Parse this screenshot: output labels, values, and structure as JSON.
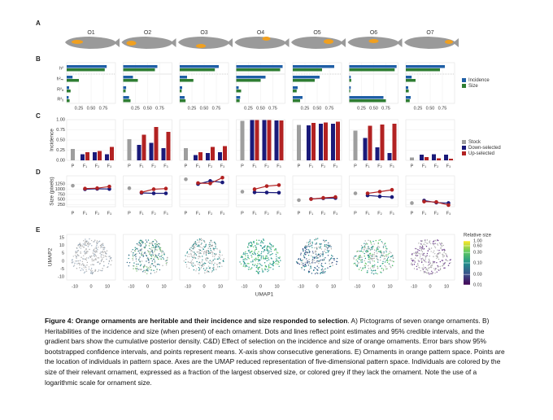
{
  "panel_labels": [
    "A",
    "B",
    "C",
    "D",
    "E"
  ],
  "ornaments": [
    "O1",
    "O2",
    "O3",
    "O4",
    "O5",
    "O6",
    "O7"
  ],
  "chart_data": [
    {
      "type": "hbar",
      "row_labels": [
        "h²",
        "h²ₘ",
        "R²ₐ",
        "R²ᵧ"
      ],
      "xlim": [
        0,
        1
      ],
      "xticks": [
        0.25,
        {
          "value": 0.5,
          "label": "0.50"
        },
        0.75
      ],
      "series": [
        {
          "name": "Incidence",
          "color": "#1f5fa6",
          "values": [
            [
              0.82,
              0.12,
              0.05,
              0.04
            ],
            [
              0.7,
              0.2,
              0.06,
              0.12
            ],
            [
              0.8,
              0.15,
              0.05,
              0.1
            ],
            [
              0.95,
              0.6,
              0.05,
              0.08
            ],
            [
              0.85,
              0.55,
              0.1,
              0.2
            ],
            [
              0.97,
              0.03,
              0.03,
              0.7
            ],
            [
              0.8,
              0.12,
              0.05,
              0.1
            ]
          ]
        },
        {
          "name": "Size",
          "color": "#2e7d32",
          "values": [
            [
              0.78,
              0.25,
              0.08,
              0.06
            ],
            [
              0.65,
              0.3,
              0.05,
              0.15
            ],
            [
              0.72,
              0.28,
              0.04,
              0.12
            ],
            [
              0.9,
              0.5,
              0.1,
              0.07
            ],
            [
              0.6,
              0.45,
              0.08,
              0.15
            ],
            [
              0.93,
              0.04,
              0.02,
              0.75
            ],
            [
              0.7,
              0.2,
              0.06,
              0.08
            ]
          ]
        }
      ]
    },
    {
      "type": "bar",
      "ylabel": "Incidence",
      "categories": [
        "P",
        "F₁",
        "F₂",
        "F₃"
      ],
      "ylim": [
        0,
        1
      ],
      "yticks": [
        {
          "value": 0,
          "label": "0.00"
        },
        {
          "value": 0.25,
          "label": "0.25"
        },
        {
          "value": 0.5,
          "label": "0.50"
        },
        {
          "value": 0.75,
          "label": "0.75"
        },
        {
          "value": 1,
          "label": "1.00"
        }
      ],
      "series": [
        {
          "name": "Stock",
          "color": "#9e9e9e",
          "values": [
            [
              0.28,
              null,
              null,
              null
            ],
            [
              0.52,
              null,
              null,
              null
            ],
            [
              0.3,
              null,
              null,
              null
            ],
            [
              0.97,
              null,
              null,
              null
            ],
            [
              0.87,
              null,
              null,
              null
            ],
            [
              0.73,
              null,
              null,
              null
            ],
            [
              0.07,
              null,
              null,
              null
            ]
          ]
        },
        {
          "name": "Down-selected",
          "color": "#1a1a7a",
          "values": [
            [
              null,
              0.15,
              0.2,
              0.15
            ],
            [
              null,
              0.38,
              0.43,
              0.3
            ],
            [
              null,
              0.13,
              0.18,
              0.2
            ],
            [
              null,
              0.99,
              0.99,
              0.98
            ],
            [
              null,
              0.86,
              0.9,
              0.9
            ],
            [
              null,
              0.55,
              0.32,
              0.18
            ],
            [
              null,
              0.14,
              0.15,
              0.14
            ]
          ]
        },
        {
          "name": "Up-selected",
          "color": "#b22222",
          "values": [
            [
              null,
              0.2,
              0.23,
              0.33
            ],
            [
              null,
              0.63,
              0.82,
              0.7
            ],
            [
              null,
              0.2,
              0.33,
              0.35
            ],
            [
              null,
              0.99,
              0.99,
              0.98
            ],
            [
              null,
              0.92,
              0.93,
              0.95
            ],
            [
              null,
              0.85,
              0.88,
              0.9
            ],
            [
              null,
              0.08,
              0.05,
              0.04
            ]
          ]
        }
      ]
    },
    {
      "type": "line",
      "ylabel": "Size (pixels)",
      "categories": [
        "P",
        "F₁",
        "F₂",
        "F₃"
      ],
      "ylim": [
        150,
        1650
      ],
      "yticks": [
        250,
        500,
        750,
        1000,
        1250
      ],
      "series": [
        {
          "color": "#9e9e9e",
          "values": [
            [
              1170,
              null,
              null,
              null
            ],
            [
              1050,
              null,
              null,
              null
            ],
            [
              1480,
              null,
              null,
              null
            ],
            [
              880,
              null,
              null,
              null
            ],
            [
              470,
              null,
              null,
              null
            ],
            [
              800,
              null,
              null,
              null
            ],
            [
              330,
              null,
              null,
              null
            ]
          ]
        },
        {
          "color": "#1a1a7a",
          "values": [
            [
              null,
              1000,
              1020,
              1010
            ],
            [
              null,
              820,
              800,
              800
            ],
            [
              null,
              1250,
              1400,
              1330
            ],
            [
              null,
              850,
              840,
              830
            ],
            [
              null,
              530,
              560,
              570
            ],
            [
              null,
              700,
              650,
              620
            ],
            [
              null,
              450,
              350,
              330
            ]
          ]
        },
        {
          "color": "#b22222",
          "values": [
            [
              null,
              1030,
              1050,
              1130
            ],
            [
              null,
              850,
              1000,
              1030
            ],
            [
              null,
              1300,
              1280,
              1560
            ],
            [
              null,
              1000,
              1150,
              1200
            ],
            [
              null,
              520,
              580,
              620
            ],
            [
              null,
              800,
              880,
              970
            ],
            [
              null,
              400,
              380,
              230
            ]
          ]
        }
      ]
    },
    {
      "type": "scatter",
      "xlabel": "UMAP1",
      "ylabel": "UMAP2",
      "xlim": [
        -15,
        15
      ],
      "ylim": [
        -12,
        17
      ],
      "xticks": [
        -10,
        0,
        10
      ],
      "yticks": [
        15,
        10,
        5,
        0,
        -5,
        -10
      ],
      "colorbar": {
        "title": "Relative size",
        "log": true,
        "lim": [
          0.01,
          1
        ],
        "colors": [
          "#440154",
          "#3b528b",
          "#21918c",
          "#5ec962",
          "#fde725"
        ],
        "ticks": [
          {
            "value": 1,
            "label": "1.00"
          },
          {
            "value": 0.6,
            "label": "0.60"
          },
          {
            "value": 0.3,
            "label": "0.30"
          },
          {
            "value": 0.1,
            "label": "0.10"
          },
          {
            "value": 0.03,
            "label": "0.03"
          },
          {
            "value": 0.01,
            "label": "0.01"
          }
        ]
      }
    }
  ],
  "caption": {
    "title": "Figure 4: Orange ornaments are heritable and their incidence and size responded to selection",
    "text": ". A) Pictograms of seven orange ornaments. B) Heritabilities of the incidence and size (when present) of each ornament. Dots and lines reflect point estimates and 95% credible intervals, and the gradient bars show the cumulative posterior density. C&D) Effect of selection on the incidence and size of orange ornaments. Error bars show 95% bootstrapped confidence intervals, and points represent means. X-axis show consecutive generations. E) Ornaments in orange pattern space. Points are the location of individuals in pattern space. Axes are the UMAP reduced representation of five-dimensional pattern space. Individuals are colored by the size of their relevant ornament, expressed as a fraction of the largest observed size, or colored grey if they lack the ornament. Note the use of a logarithmic scale for ornament size."
  }
}
